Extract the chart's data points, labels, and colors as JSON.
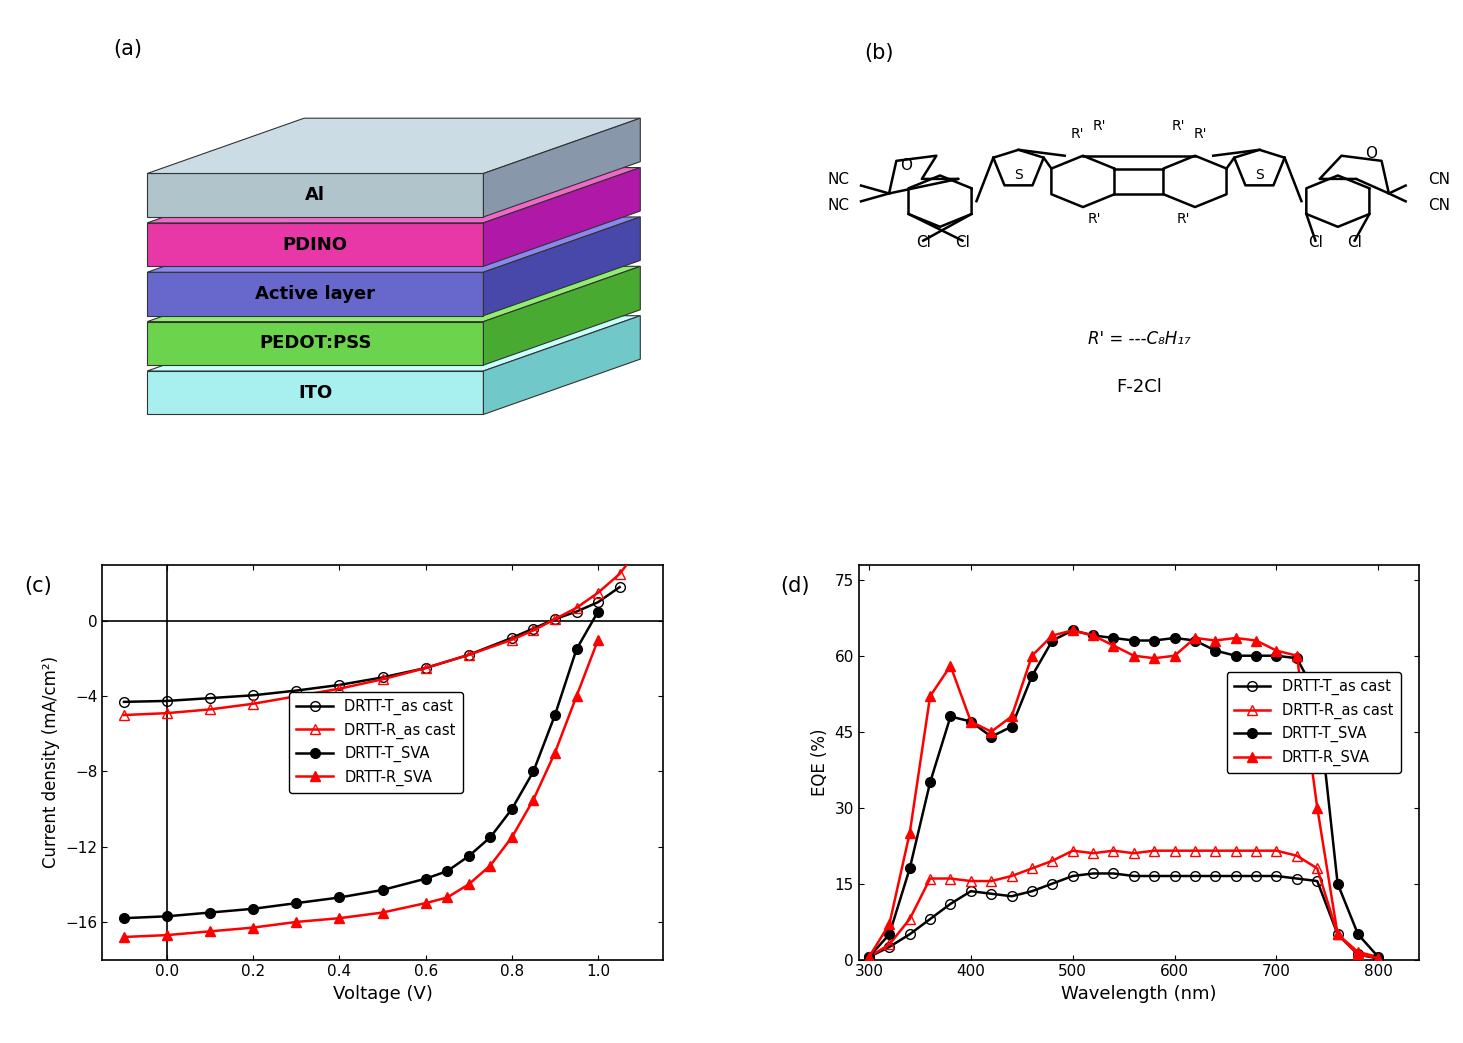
{
  "panel_labels": [
    "(a)",
    "(b)",
    "(c)",
    "(d)"
  ],
  "jv_curves": {
    "DRTT_T_as_cast": {
      "color": "black",
      "marker": "o",
      "marker_fill": "none",
      "label": "DRTT-T_as cast",
      "V": [
        -0.1,
        0.0,
        0.1,
        0.2,
        0.3,
        0.4,
        0.5,
        0.6,
        0.7,
        0.8,
        0.85,
        0.9,
        0.95,
        1.0,
        1.05
      ],
      "J": [
        -4.3,
        -4.25,
        -4.1,
        -3.95,
        -3.7,
        -3.4,
        -3.0,
        -2.5,
        -1.8,
        -0.9,
        -0.4,
        0.1,
        0.5,
        1.0,
        1.8
      ]
    },
    "DRTT_R_as_cast": {
      "color": "red",
      "marker": "^",
      "marker_fill": "none",
      "label": "DRTT-R_as cast",
      "V": [
        -0.1,
        0.0,
        0.1,
        0.2,
        0.3,
        0.4,
        0.5,
        0.6,
        0.7,
        0.8,
        0.85,
        0.9,
        0.95,
        1.0,
        1.05,
        1.1
      ],
      "J": [
        -5.0,
        -4.9,
        -4.7,
        -4.4,
        -4.0,
        -3.6,
        -3.1,
        -2.5,
        -1.8,
        -1.0,
        -0.5,
        0.1,
        0.7,
        1.5,
        2.5,
        4.0
      ]
    },
    "DRTT_T_SVA": {
      "color": "black",
      "marker": "o",
      "marker_fill": "black",
      "label": "DRTT-T_SVA",
      "V": [
        -0.1,
        0.0,
        0.1,
        0.2,
        0.3,
        0.4,
        0.5,
        0.6,
        0.65,
        0.7,
        0.75,
        0.8,
        0.85,
        0.9,
        0.95,
        1.0
      ],
      "J": [
        -15.8,
        -15.7,
        -15.5,
        -15.3,
        -15.0,
        -14.7,
        -14.3,
        -13.7,
        -13.3,
        -12.5,
        -11.5,
        -10.0,
        -8.0,
        -5.0,
        -1.5,
        0.5
      ]
    },
    "DRTT_R_SVA": {
      "color": "red",
      "marker": "^",
      "marker_fill": "red",
      "label": "DRTT-R_SVA",
      "V": [
        -0.1,
        0.0,
        0.1,
        0.2,
        0.3,
        0.4,
        0.5,
        0.6,
        0.65,
        0.7,
        0.75,
        0.8,
        0.85,
        0.9,
        0.95,
        1.0
      ],
      "J": [
        -16.8,
        -16.7,
        -16.5,
        -16.3,
        -16.0,
        -15.8,
        -15.5,
        -15.0,
        -14.7,
        -14.0,
        -13.0,
        -11.5,
        -9.5,
        -7.0,
        -4.0,
        -1.0
      ]
    }
  },
  "eqe_curves": {
    "DRTT_T_as_cast": {
      "color": "black",
      "marker": "o",
      "marker_fill": "none",
      "label": "DRTT-T_as cast",
      "wl": [
        300,
        320,
        340,
        360,
        380,
        400,
        420,
        440,
        460,
        480,
        500,
        520,
        540,
        560,
        580,
        600,
        620,
        640,
        660,
        680,
        700,
        720,
        740,
        760,
        780,
        800
      ],
      "eqe": [
        0.5,
        2.5,
        5.0,
        8.0,
        11.0,
        13.5,
        13.0,
        12.5,
        13.5,
        15.0,
        16.5,
        17.0,
        17.0,
        16.5,
        16.5,
        16.5,
        16.5,
        16.5,
        16.5,
        16.5,
        16.5,
        16.0,
        15.5,
        5.0,
        1.0,
        0.2
      ]
    },
    "DRTT_R_as_cast": {
      "color": "red",
      "marker": "^",
      "marker_fill": "none",
      "label": "DRTT-R_as cast",
      "wl": [
        300,
        320,
        340,
        360,
        380,
        400,
        420,
        440,
        460,
        480,
        500,
        520,
        540,
        560,
        580,
        600,
        620,
        640,
        660,
        680,
        700,
        720,
        740,
        760,
        780,
        800
      ],
      "eqe": [
        0.5,
        3.0,
        8.0,
        16.0,
        16.0,
        15.5,
        15.5,
        16.5,
        18.0,
        19.5,
        21.5,
        21.0,
        21.5,
        21.0,
        21.5,
        21.5,
        21.5,
        21.5,
        21.5,
        21.5,
        21.5,
        20.5,
        18.0,
        5.0,
        1.5,
        0.5
      ]
    },
    "DRTT_T_SVA": {
      "color": "black",
      "marker": "o",
      "marker_fill": "black",
      "label": "DRTT-T_SVA",
      "wl": [
        300,
        320,
        340,
        360,
        380,
        400,
        420,
        440,
        460,
        480,
        500,
        520,
        540,
        560,
        580,
        600,
        620,
        640,
        660,
        680,
        700,
        720,
        740,
        760,
        780,
        800
      ],
      "eqe": [
        0.5,
        5.0,
        18.0,
        35.0,
        48.0,
        47.0,
        44.0,
        46.0,
        56.0,
        63.0,
        65.0,
        64.0,
        63.5,
        63.0,
        63.0,
        63.5,
        63.0,
        61.0,
        60.0,
        60.0,
        60.0,
        59.5,
        52.0,
        15.0,
        5.0,
        0.5
      ]
    },
    "DRTT_R_SVA": {
      "color": "red",
      "marker": "^",
      "marker_fill": "red",
      "label": "DRTT-R_SVA",
      "wl": [
        300,
        320,
        340,
        360,
        380,
        400,
        420,
        440,
        460,
        480,
        500,
        520,
        540,
        560,
        580,
        600,
        620,
        640,
        660,
        680,
        700,
        720,
        740,
        760,
        780,
        800
      ],
      "eqe": [
        0.5,
        7.0,
        25.0,
        52.0,
        58.0,
        47.0,
        45.0,
        48.0,
        60.0,
        64.0,
        65.0,
        64.0,
        62.0,
        60.0,
        59.5,
        60.0,
        63.5,
        63.0,
        63.5,
        63.0,
        61.0,
        60.0,
        30.0,
        5.0,
        1.0,
        0.3
      ]
    }
  },
  "layer_info": [
    {
      "name": "ITO",
      "face": "#a8f0f0",
      "top": "#c8ffff",
      "side": "#70c8c8"
    },
    {
      "name": "PEDOT:PSS",
      "face": "#6cd44c",
      "top": "#90ee70",
      "side": "#48aa30"
    },
    {
      "name": "Active layer",
      "face": "#6868cc",
      "top": "#8888ee",
      "side": "#4848aa"
    },
    {
      "name": "PDINO",
      "face": "#e838a8",
      "top": "#f068c8",
      "side": "#b018a8"
    },
    {
      "name": "Al",
      "face": "#b0c4cc",
      "top": "#ccdce4",
      "side": "#8898aa"
    }
  ]
}
